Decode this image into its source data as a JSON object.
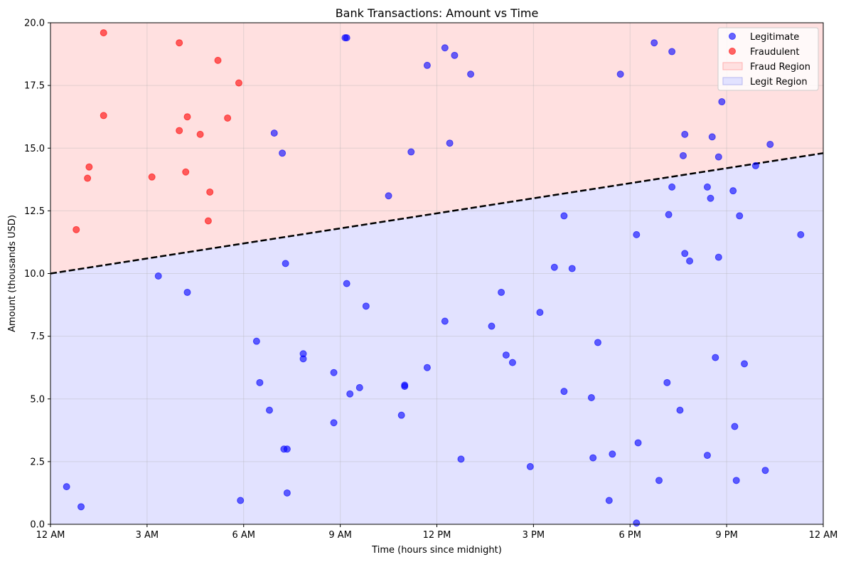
{
  "chart_data": {
    "type": "scatter",
    "title": "Bank Transactions: Amount vs Time",
    "xlabel": "Time (hours since midnight)",
    "ylabel": "Amount (thousands USD)",
    "xlim": [
      0,
      24
    ],
    "ylim": [
      0,
      20
    ],
    "x_ticks": [
      0,
      3,
      6,
      9,
      12,
      15,
      18,
      21,
      24
    ],
    "x_tick_labels": [
      "12 AM",
      "3 AM",
      "6 AM",
      "9 AM",
      "12 PM",
      "3 PM",
      "6 PM",
      "9 PM",
      "12 AM"
    ],
    "y_ticks": [
      0,
      2.5,
      5,
      7.5,
      10,
      12.5,
      15,
      17.5,
      20
    ],
    "y_tick_labels": [
      "0.0",
      "2.5",
      "5.0",
      "7.5",
      "10.0",
      "12.5",
      "15.0",
      "17.5",
      "20.0"
    ],
    "grid": true,
    "legend_position": "top-right",
    "decision_boundary": {
      "x": [
        0,
        24
      ],
      "y": [
        10.0,
        14.8
      ],
      "style": "dashed",
      "color": "#000000"
    },
    "regions": [
      {
        "name": "Fraud Region",
        "side": "above",
        "color": "#ffe0e0"
      },
      {
        "name": "Legit Region",
        "side": "below",
        "color": "#e2e2ff"
      }
    ],
    "series": [
      {
        "name": "Legitimate",
        "color": "#0000ff",
        "x": [
          0.5,
          0.95,
          9.15,
          9.2,
          12.25,
          12.55,
          11.7,
          13.05,
          17.7,
          18.75,
          19.3,
          19.7,
          20.55,
          20.85,
          6.95,
          7.2,
          11.2,
          12.4,
          10.5,
          19.65,
          20.5,
          20.75,
          21.2,
          21.9,
          22.35,
          19.3,
          20.4,
          21.4,
          23.3,
          15.95,
          19.2,
          18.2,
          7.3,
          19.7,
          19.85,
          20.75,
          15.65,
          16.2,
          3.35,
          4.25,
          9.2,
          9.8,
          14.0,
          15.2,
          12.25,
          13.7,
          6.4,
          17.0,
          7.85,
          7.85,
          8.8,
          14.15,
          14.35,
          20.65,
          21.55,
          6.5,
          9.3,
          9.6,
          11.0,
          11.0,
          11.7,
          19.15,
          15.95,
          16.8,
          6.8,
          10.9,
          19.55,
          8.8,
          7.25,
          7.35,
          12.75,
          14.9,
          16.85,
          17.45,
          18.25,
          20.4,
          21.25,
          22.2,
          21.3,
          7.35,
          5.9,
          17.35,
          18.9,
          18.2
        ],
        "y": [
          1.5,
          0.7,
          19.4,
          19.4,
          19.0,
          18.7,
          18.3,
          17.95,
          17.95,
          19.2,
          18.85,
          15.55,
          15.45,
          16.85,
          15.6,
          14.8,
          14.85,
          15.2,
          13.1,
          14.7,
          13.0,
          14.65,
          13.3,
          14.3,
          15.15,
          13.45,
          13.45,
          12.3,
          11.55,
          12.3,
          12.35,
          11.55,
          10.4,
          10.8,
          10.5,
          10.65,
          10.25,
          10.2,
          9.9,
          9.25,
          9.6,
          8.7,
          9.25,
          8.45,
          8.1,
          7.9,
          7.3,
          7.25,
          6.8,
          6.6,
          6.05,
          6.75,
          6.45,
          6.65,
          6.4,
          5.65,
          5.2,
          5.45,
          5.5,
          5.55,
          6.25,
          5.65,
          5.3,
          5.05,
          4.55,
          4.35,
          4.55,
          4.05,
          3.0,
          3.0,
          2.6,
          2.3,
          2.65,
          2.8,
          3.25,
          2.75,
          3.9,
          2.15,
          1.75,
          1.25,
          0.95,
          0.95,
          1.75,
          0.05
        ]
      },
      {
        "name": "Fraudulent",
        "color": "#ff0000",
        "x": [
          1.65,
          4.0,
          5.2,
          5.85,
          1.65,
          4.25,
          5.5,
          4.0,
          4.65,
          1.2,
          3.15,
          4.2,
          1.15,
          4.95,
          4.9,
          0.8
        ],
        "y": [
          19.6,
          19.2,
          18.5,
          17.6,
          16.3,
          16.25,
          16.2,
          15.7,
          15.55,
          14.25,
          13.85,
          14.05,
          13.8,
          13.25,
          12.1,
          11.75
        ]
      }
    ]
  }
}
